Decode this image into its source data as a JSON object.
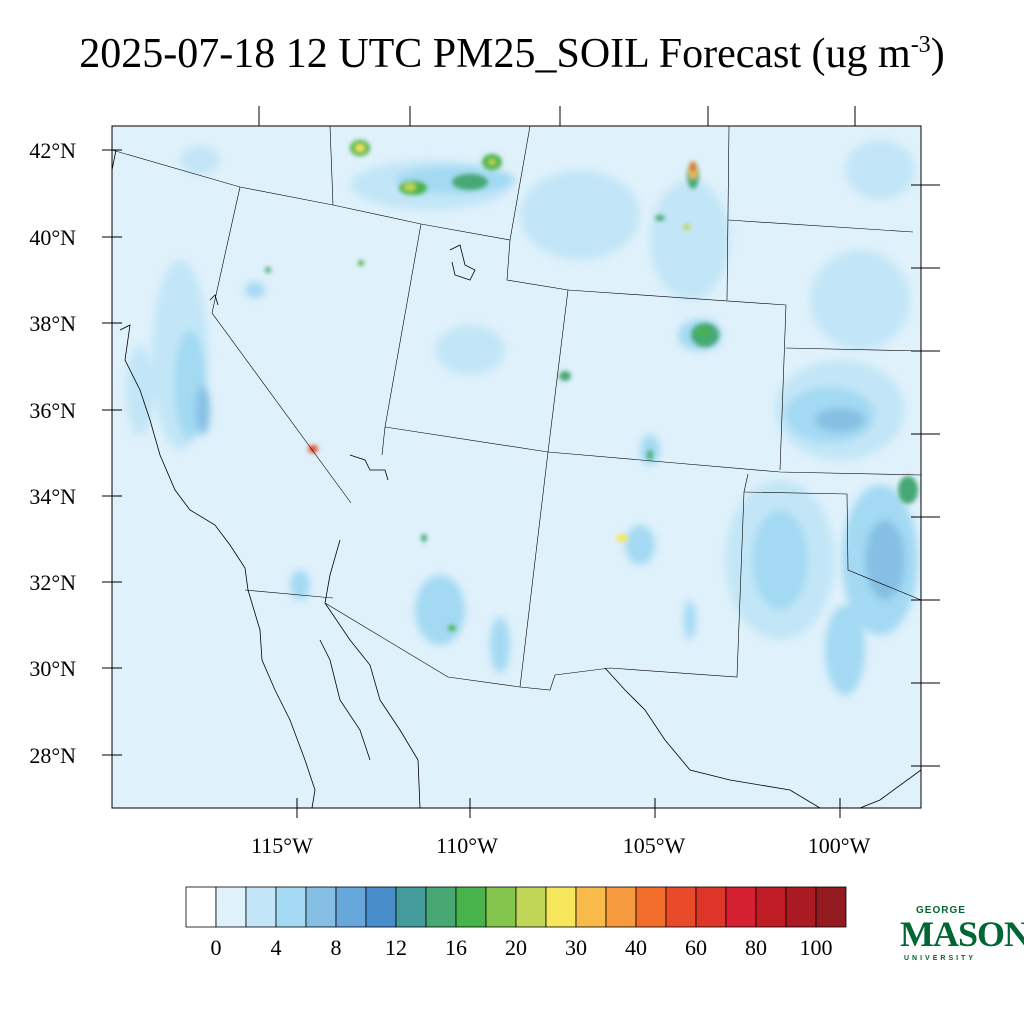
{
  "title": {
    "main": "2025-07-18 12 UTC PM25_SOIL Forecast (ug m",
    "exponent": "-3",
    "close": ")"
  },
  "lat_labels": [
    "42°N",
    "40°N",
    "38°N",
    "36°N",
    "34°N",
    "32°N",
    "30°N",
    "28°N"
  ],
  "lon_labels": [
    "115°W",
    "110°W",
    "105°W",
    "100°W"
  ],
  "colorbar": {
    "colors": [
      "#ffffff",
      "#dff1fb",
      "#c2e6f7",
      "#a3d9f3",
      "#85bfe4",
      "#66a7dc",
      "#4a8dcb",
      "#459c9c",
      "#47a874",
      "#47b34a",
      "#83c54d",
      "#c1d656",
      "#f5e65b",
      "#f8bb49",
      "#f59a3e",
      "#f26c2a",
      "#e84a2a",
      "#dd3527",
      "#d42030",
      "#c01c26",
      "#aa1a22",
      "#931a1e"
    ],
    "tick_labels": [
      "0",
      "4",
      "8",
      "12",
      "16",
      "20",
      "30",
      "40",
      "60",
      "80",
      "100"
    ]
  },
  "logo": {
    "top": "GEORGE",
    "main": "MASON",
    "bottom": "UNIVERSITY"
  }
}
